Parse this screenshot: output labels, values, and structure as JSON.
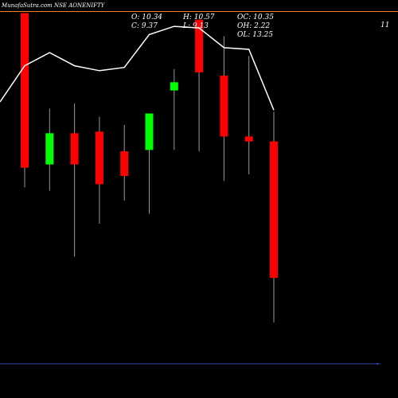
{
  "header": {
    "title": "MunafaSutra.com NSE AONENIFTY",
    "open_label": "O: 10.34",
    "high_label": "H: 10.57",
    "oc_label": "OC: 10.35",
    "close_label": "C: 9.37",
    "low_label": "L: 9.13",
    "oh_label": "OH: 2.22",
    "ol_label": "OL: 13.25",
    "price_tag": "11"
  },
  "colors": {
    "background": "#000000",
    "up": "#00ff00",
    "down": "#ff0000",
    "wick": "#999999",
    "line": "#ffffff",
    "top_line": "#ff7f27",
    "bottom_line": "#3344aa"
  },
  "chart_data": {
    "type": "candlestick",
    "candles": [
      {
        "open": 13.2,
        "high": 13.2,
        "low": 7.9,
        "close": 8.5,
        "dir": "down"
      },
      {
        "open": 8.6,
        "high": 10.3,
        "low": 7.8,
        "close": 9.55,
        "dir": "up"
      },
      {
        "open": 9.55,
        "high": 10.45,
        "low": 5.8,
        "close": 8.6,
        "dir": "down"
      },
      {
        "open": 9.6,
        "high": 10.05,
        "low": 6.8,
        "close": 8.0,
        "dir": "down"
      },
      {
        "open": 9.0,
        "high": 9.8,
        "low": 7.5,
        "close": 8.25,
        "dir": "down"
      },
      {
        "open": 10.15,
        "high": 10.15,
        "low": 7.1,
        "close": 9.04,
        "dir": "up"
      },
      {
        "open": 10.85,
        "high": 11.5,
        "low": 9.04,
        "close": 11.1,
        "dir": "up"
      },
      {
        "open": 13.0,
        "high": 13.0,
        "low": 9.0,
        "close": 11.4,
        "dir": "down"
      },
      {
        "open": 11.3,
        "high": 12.5,
        "low": 8.1,
        "close": 9.45,
        "dir": "down"
      },
      {
        "open": 9.45,
        "high": 11.9,
        "low": 8.3,
        "close": 9.3,
        "dir": "down"
      },
      {
        "open": 9.3,
        "high": 10.2,
        "low": 3.8,
        "close": 5.15,
        "dir": "down"
      }
    ],
    "line": [
      10.5,
      11.6,
      12.0,
      11.6,
      11.45,
      11.55,
      12.55,
      12.8,
      12.75,
      12.15,
      12.1,
      10.25
    ],
    "ylim": [
      1.5,
      13.6
    ],
    "reference_level": 13.25
  }
}
